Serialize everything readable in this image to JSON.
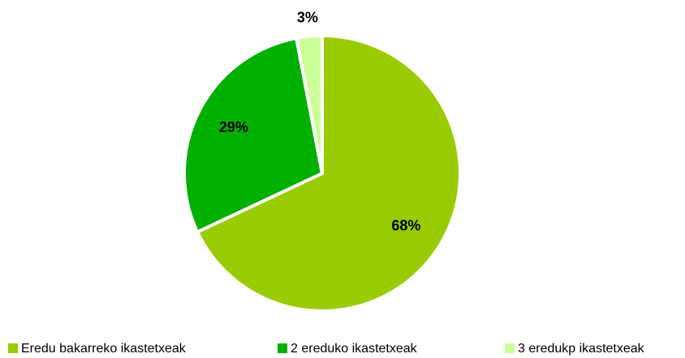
{
  "chart_data": {
    "type": "pie",
    "categories": [
      "Eredu bakarreko ikastetxeak",
      "2 ereduko ikastetxeak",
      "3 eredukp ikastetxeak"
    ],
    "values": [
      68,
      29,
      3
    ],
    "value_labels": [
      "68%",
      "29%",
      "3%"
    ],
    "colors": [
      "#99cc00",
      "#00b000",
      "#ccff99"
    ],
    "legend": "bottom"
  }
}
